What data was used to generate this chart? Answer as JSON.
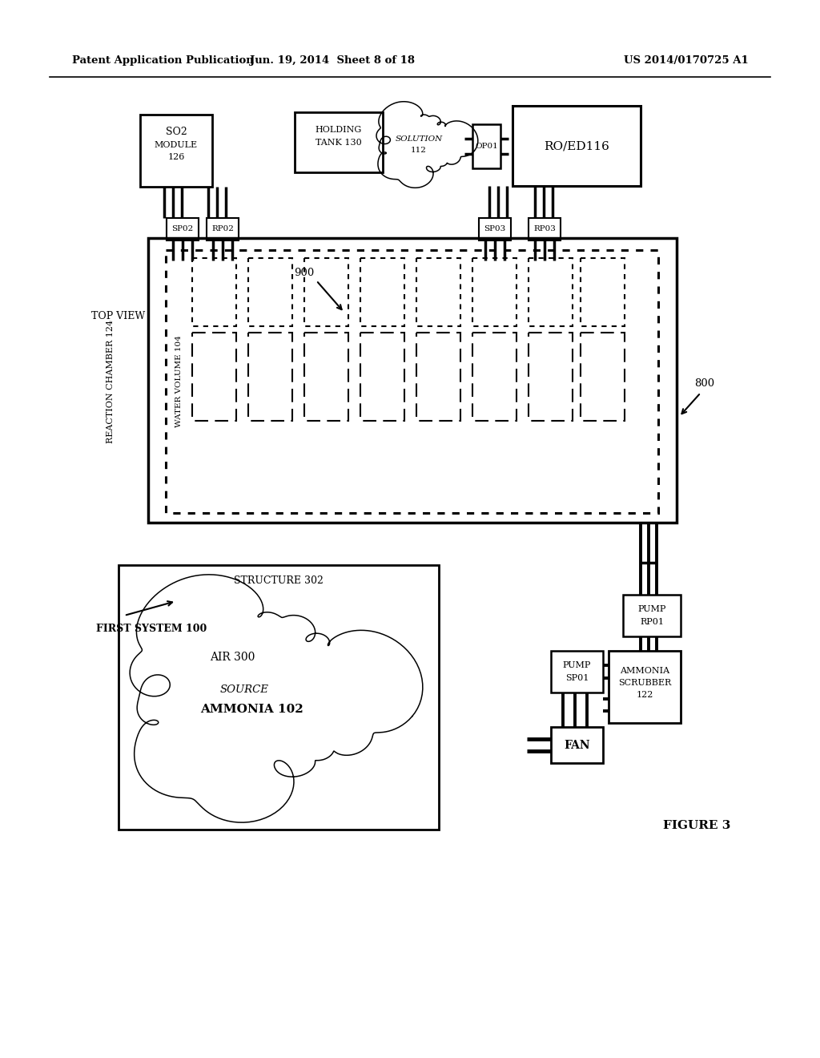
{
  "bg_color": "#ffffff",
  "header_left": "Patent Application Publication",
  "header_mid": "Jun. 19, 2014  Sheet 8 of 18",
  "header_right": "US 2014/0170725 A1",
  "figure_label": "FIGURE 3"
}
